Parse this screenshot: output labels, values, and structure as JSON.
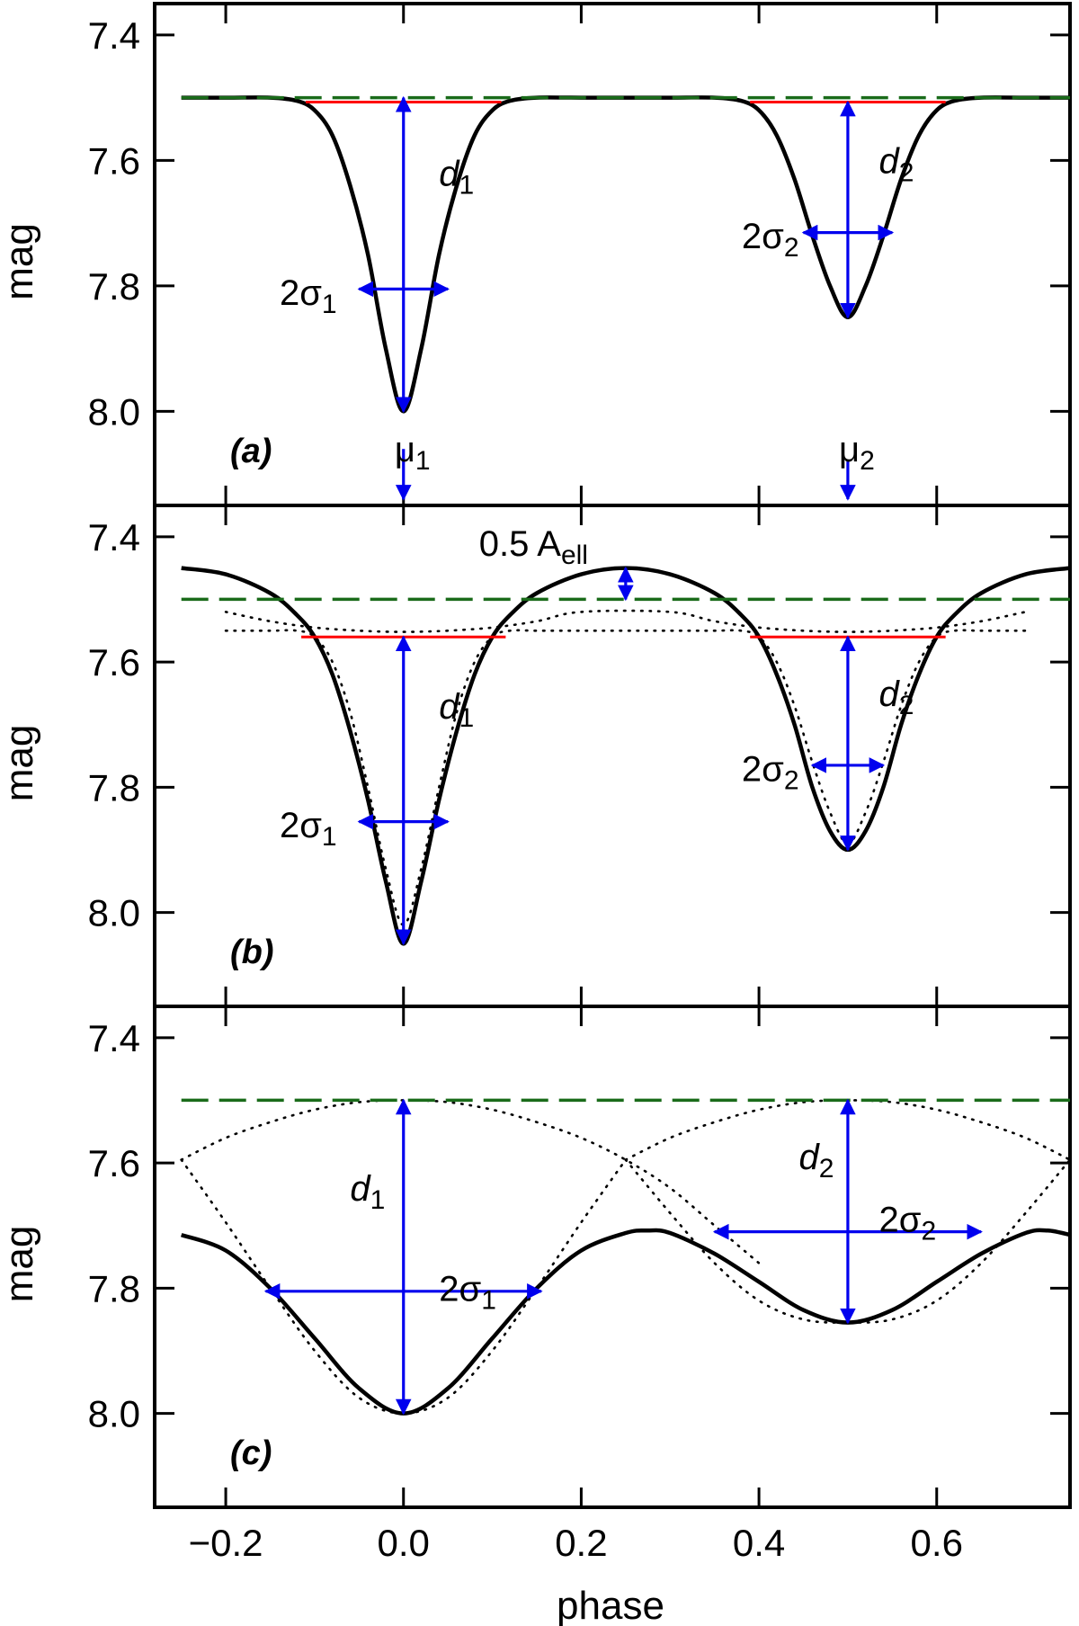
{
  "chart_data": [
    {
      "panel": "(a)",
      "type": "line",
      "xlabel": "",
      "ylabel": "mag",
      "xlim": [
        -0.28,
        0.75
      ],
      "ylim": [
        8.15,
        7.35
      ],
      "y_inverted": true,
      "yticks": [
        "7.4",
        "7.6",
        "7.8",
        "8.0"
      ],
      "series": [
        {
          "role": "light-curve",
          "style": "solid",
          "color": "#000000",
          "x": [
            -0.25,
            -0.2,
            -0.15,
            -0.12,
            -0.1,
            -0.08,
            -0.06,
            -0.04,
            -0.02,
            0.0,
            0.02,
            0.04,
            0.06,
            0.08,
            0.1,
            0.12,
            0.15,
            0.2,
            0.3,
            0.35,
            0.38,
            0.4,
            0.42,
            0.44,
            0.46,
            0.48,
            0.5,
            0.52,
            0.54,
            0.56,
            0.58,
            0.6,
            0.62,
            0.65,
            0.7,
            0.75
          ],
          "y": [
            7.5,
            7.5,
            7.5,
            7.505,
            7.52,
            7.56,
            7.64,
            7.75,
            7.9,
            8.0,
            7.9,
            7.75,
            7.64,
            7.56,
            7.52,
            7.505,
            7.5,
            7.5,
            7.5,
            7.5,
            7.505,
            7.52,
            7.56,
            7.63,
            7.72,
            7.8,
            7.85,
            7.8,
            7.72,
            7.63,
            7.56,
            7.52,
            7.505,
            7.5,
            7.5,
            7.5
          ]
        },
        {
          "role": "constant-level",
          "style": "dashed",
          "color": "#1a6b1a",
          "x": [
            -0.25,
            0.75
          ],
          "y": [
            7.5,
            7.5
          ]
        }
      ],
      "segments": [
        {
          "role": "base-level-1",
          "color": "#ff0000",
          "x": [
            -0.11,
            0.11
          ],
          "y": [
            7.507,
            7.507
          ]
        },
        {
          "role": "base-level-2",
          "color": "#ff0000",
          "x": [
            0.39,
            0.61
          ],
          "y": [
            7.507,
            7.507
          ]
        }
      ],
      "arrows": [
        {
          "role": "depth-1",
          "from": [
            0.0,
            7.5
          ],
          "to": [
            0.0,
            8.0
          ],
          "heads": "both"
        },
        {
          "role": "width-1",
          "from": [
            -0.05,
            7.805
          ],
          "to": [
            0.05,
            7.805
          ],
          "heads": "both"
        },
        {
          "role": "depth-2",
          "from": [
            0.5,
            7.507
          ],
          "to": [
            0.5,
            7.85
          ],
          "heads": "both"
        },
        {
          "role": "width-2",
          "from": [
            0.45,
            7.715
          ],
          "to": [
            0.55,
            7.715
          ],
          "heads": "both"
        },
        {
          "role": "center-1",
          "from": [
            0.0,
            8.06
          ],
          "to": [
            0.0,
            8.14
          ],
          "heads": "end"
        },
        {
          "role": "center-2",
          "from": [
            0.5,
            8.08
          ],
          "to": [
            0.5,
            8.14
          ],
          "heads": "end"
        }
      ],
      "annotations": [
        {
          "key": "d1",
          "text": "d",
          "sub": "1",
          "x": 0.04,
          "y": 7.62,
          "italic": true
        },
        {
          "key": "s1",
          "text": "2σ",
          "sub": "1",
          "x": -0.075,
          "y": 7.81,
          "anchor": "end"
        },
        {
          "key": "m1",
          "text": "μ",
          "sub": "1",
          "x": -0.01,
          "y": 8.06
        },
        {
          "key": "d2",
          "text": "d",
          "sub": "2",
          "x": 0.535,
          "y": 7.6,
          "italic": true
        },
        {
          "key": "s2",
          "text": "2σ",
          "sub": "2",
          "x": 0.445,
          "y": 7.72,
          "anchor": "end"
        },
        {
          "key": "m2",
          "text": "μ",
          "sub": "2",
          "x": 0.49,
          "y": 8.06
        }
      ]
    },
    {
      "panel": "(b)",
      "type": "line",
      "xlabel": "",
      "ylabel": "mag",
      "xlim": [
        -0.28,
        0.75
      ],
      "ylim": [
        8.15,
        7.35
      ],
      "y_inverted": true,
      "yticks": [
        "7.4",
        "7.6",
        "7.8",
        "8.0"
      ],
      "series": [
        {
          "role": "light-curve",
          "style": "solid",
          "color": "#000000",
          "x": [
            -0.25,
            -0.2,
            -0.15,
            -0.12,
            -0.1,
            -0.08,
            -0.06,
            -0.04,
            -0.02,
            0.0,
            0.02,
            0.04,
            0.06,
            0.08,
            0.1,
            0.12,
            0.15,
            0.2,
            0.25,
            0.3,
            0.35,
            0.38,
            0.4,
            0.42,
            0.44,
            0.46,
            0.48,
            0.5,
            0.52,
            0.54,
            0.56,
            0.58,
            0.6,
            0.62,
            0.65,
            0.7,
            0.75
          ],
          "y": [
            7.45,
            7.46,
            7.49,
            7.525,
            7.56,
            7.62,
            7.71,
            7.82,
            7.95,
            8.05,
            7.95,
            7.82,
            7.71,
            7.62,
            7.56,
            7.525,
            7.49,
            7.46,
            7.45,
            7.46,
            7.49,
            7.525,
            7.56,
            7.62,
            7.7,
            7.8,
            7.87,
            7.9,
            7.87,
            7.8,
            7.7,
            7.62,
            7.56,
            7.525,
            7.49,
            7.46,
            7.45
          ]
        },
        {
          "role": "eclipse-only",
          "style": "dotted",
          "color": "#000000",
          "x": [
            -0.2,
            -0.15,
            -0.12,
            -0.1,
            -0.08,
            -0.06,
            -0.04,
            -0.02,
            0.0,
            0.02,
            0.04,
            0.06,
            0.08,
            0.1,
            0.12,
            0.15,
            0.2,
            0.3,
            0.35,
            0.38,
            0.4,
            0.42,
            0.44,
            0.46,
            0.48,
            0.5,
            0.52,
            0.54,
            0.56,
            0.58,
            0.6,
            0.62,
            0.65,
            0.7
          ],
          "y": [
            7.55,
            7.55,
            7.55,
            7.56,
            7.6,
            7.68,
            7.8,
            7.93,
            8.02,
            7.93,
            7.8,
            7.68,
            7.6,
            7.56,
            7.55,
            7.55,
            7.55,
            7.55,
            7.55,
            7.55,
            7.56,
            7.6,
            7.67,
            7.76,
            7.84,
            7.89,
            7.84,
            7.76,
            7.67,
            7.6,
            7.56,
            7.55,
            7.55,
            7.55
          ]
        },
        {
          "role": "ellipsoidal-shape",
          "style": "dotted",
          "color": "#000000",
          "x": [
            -0.2,
            -0.15,
            -0.1,
            -0.05,
            0.0,
            0.05,
            0.1,
            0.15,
            0.2,
            0.3,
            0.35,
            0.4,
            0.45,
            0.5,
            0.55,
            0.6,
            0.65,
            0.7
          ],
          "y": [
            7.52,
            7.535,
            7.545,
            7.55,
            7.552,
            7.55,
            7.545,
            7.535,
            7.52,
            7.52,
            7.535,
            7.545,
            7.55,
            7.552,
            7.55,
            7.545,
            7.535,
            7.52
          ]
        },
        {
          "role": "constant-level",
          "style": "dashed",
          "color": "#1a6b1a",
          "x": [
            -0.25,
            0.75
          ],
          "y": [
            7.5,
            7.5
          ]
        }
      ],
      "segments": [
        {
          "role": "base-level-1",
          "color": "#ff0000",
          "x": [
            -0.115,
            0.115
          ],
          "y": [
            7.56,
            7.56
          ]
        },
        {
          "role": "base-level-2",
          "color": "#ff0000",
          "x": [
            0.39,
            0.61
          ],
          "y": [
            7.56,
            7.56
          ]
        }
      ],
      "arrows": [
        {
          "role": "depth-1",
          "from": [
            0.0,
            7.56
          ],
          "to": [
            0.0,
            8.05
          ],
          "heads": "both"
        },
        {
          "role": "width-1",
          "from": [
            -0.05,
            7.855
          ],
          "to": [
            0.05,
            7.855
          ],
          "heads": "both"
        },
        {
          "role": "depth-2",
          "from": [
            0.5,
            7.56
          ],
          "to": [
            0.5,
            7.9
          ],
          "heads": "both"
        },
        {
          "role": "width-2",
          "from": [
            0.46,
            7.765
          ],
          "to": [
            0.54,
            7.765
          ],
          "heads": "both"
        },
        {
          "role": "ellipsoidal-amplitude",
          "from": [
            0.25,
            7.45
          ],
          "to": [
            0.25,
            7.5
          ],
          "heads": "both"
        }
      ],
      "annotations": [
        {
          "key": "d1",
          "text": "d",
          "sub": "1",
          "x": 0.04,
          "y": 7.67,
          "italic": true
        },
        {
          "key": "s1",
          "text": "2σ",
          "sub": "1",
          "x": -0.075,
          "y": 7.86,
          "anchor": "end"
        },
        {
          "key": "d2",
          "text": "d",
          "sub": "2",
          "x": 0.535,
          "y": 7.65,
          "italic": true
        },
        {
          "key": "s2",
          "text": "2σ",
          "sub": "2",
          "x": 0.445,
          "y": 7.77,
          "anchor": "end"
        },
        {
          "key": "aell",
          "text": "0.5 A",
          "sub": "ell",
          "x": 0.085,
          "y": 7.41
        }
      ]
    },
    {
      "panel": "(c)",
      "type": "line",
      "xlabel": "phase",
      "ylabel": "mag",
      "xlim": [
        -0.28,
        0.75
      ],
      "ylim": [
        8.15,
        7.35
      ],
      "y_inverted": true,
      "xticks": [
        "−0.2",
        "0.0",
        "0.2",
        "0.4",
        "0.6"
      ],
      "yticks": [
        "7.4",
        "7.6",
        "7.8",
        "8.0"
      ],
      "series": [
        {
          "role": "light-curve",
          "style": "solid",
          "color": "#000000",
          "x": [
            -0.25,
            -0.2,
            -0.15,
            -0.1,
            -0.05,
            0.0,
            0.05,
            0.1,
            0.15,
            0.2,
            0.25,
            0.275,
            0.3,
            0.35,
            0.4,
            0.45,
            0.5,
            0.55,
            0.6,
            0.65,
            0.7,
            0.725,
            0.75
          ],
          "y": [
            7.715,
            7.74,
            7.8,
            7.88,
            7.96,
            8.0,
            7.96,
            7.88,
            7.8,
            7.74,
            7.712,
            7.708,
            7.712,
            7.745,
            7.79,
            7.835,
            7.855,
            7.835,
            7.79,
            7.745,
            7.712,
            7.708,
            7.715
          ]
        },
        {
          "role": "primary-component",
          "style": "dotted",
          "color": "#000000",
          "x": [
            -0.25,
            -0.2,
            -0.15,
            -0.1,
            -0.05,
            0.0,
            0.05,
            0.1,
            0.15,
            0.2,
            0.25
          ],
          "y": [
            7.595,
            7.695,
            7.8,
            7.9,
            7.975,
            8.0,
            7.975,
            7.9,
            7.8,
            7.695,
            7.595
          ]
        },
        {
          "role": "primary-component-outer",
          "style": "dotted",
          "color": "#000000",
          "x": [
            -0.25,
            -0.2,
            -0.15,
            -0.1,
            -0.05,
            0.0,
            0.05,
            0.1,
            0.15,
            0.2,
            0.25,
            0.3,
            0.35,
            0.4
          ],
          "y": [
            7.595,
            7.56,
            7.535,
            7.515,
            7.503,
            7.5,
            7.503,
            7.515,
            7.535,
            7.56,
            7.595,
            7.64,
            7.7,
            7.76
          ]
        },
        {
          "role": "secondary-component",
          "style": "dotted",
          "color": "#000000",
          "x": [
            0.25,
            0.3,
            0.35,
            0.4,
            0.45,
            0.5,
            0.55,
            0.6,
            0.65,
            0.7,
            0.75
          ],
          "y": [
            7.595,
            7.68,
            7.76,
            7.82,
            7.85,
            7.855,
            7.85,
            7.82,
            7.76,
            7.68,
            7.595
          ]
        },
        {
          "role": "secondary-component-outer",
          "style": "dotted",
          "color": "#000000",
          "x": [
            0.25,
            0.3,
            0.35,
            0.4,
            0.45,
            0.5,
            0.55,
            0.6,
            0.65,
            0.7,
            0.75
          ],
          "y": [
            7.595,
            7.56,
            7.535,
            7.515,
            7.503,
            7.5,
            7.503,
            7.515,
            7.535,
            7.56,
            7.595
          ]
        },
        {
          "role": "constant-level",
          "style": "dashed",
          "color": "#1a6b1a",
          "x": [
            -0.25,
            0.75
          ],
          "y": [
            7.5,
            7.5
          ]
        }
      ],
      "segments": [],
      "arrows": [
        {
          "role": "depth-1",
          "from": [
            0.0,
            7.5
          ],
          "to": [
            0.0,
            8.0
          ],
          "heads": "both"
        },
        {
          "role": "width-1",
          "from": [
            -0.155,
            7.805
          ],
          "to": [
            0.155,
            7.805
          ],
          "heads": "both"
        },
        {
          "role": "depth-2",
          "from": [
            0.5,
            7.5
          ],
          "to": [
            0.5,
            7.855
          ],
          "heads": "both"
        },
        {
          "role": "width-2",
          "from": [
            0.35,
            7.71
          ],
          "to": [
            0.65,
            7.71
          ],
          "heads": "both"
        }
      ],
      "annotations": [
        {
          "key": "d1",
          "text": "d",
          "sub": "1",
          "x": -0.06,
          "y": 7.64,
          "italic": true
        },
        {
          "key": "s1",
          "text": "2σ",
          "sub": "1",
          "x": 0.04,
          "y": 7.8
        },
        {
          "key": "d2",
          "text": "d",
          "sub": "2",
          "x": 0.445,
          "y": 7.59,
          "italic": true
        },
        {
          "key": "s2",
          "text": "2σ",
          "sub": "2",
          "x": 0.535,
          "y": 7.69
        }
      ]
    }
  ],
  "colors": {
    "curve": "#000000",
    "constant_level": "#1a6b1a",
    "base_level": "#ff0000",
    "arrows": "#0000ee"
  }
}
